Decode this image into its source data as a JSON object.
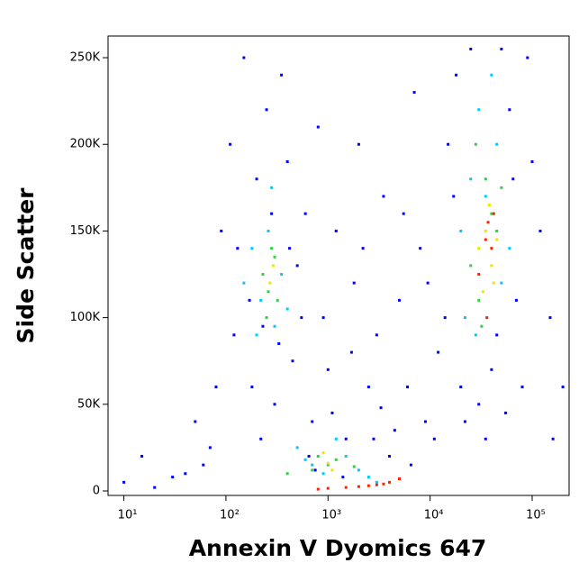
{
  "chart_data": {
    "type": "scatter",
    "x_label": "Annexin V Dyomics 647",
    "y_label": "Side Scatter",
    "xscale": "log",
    "xlim": [
      7,
      230000
    ],
    "ylim": [
      -2600,
      262500
    ],
    "xticks": [
      {
        "value": 10,
        "label": "10¹"
      },
      {
        "value": 100,
        "label": "10²"
      },
      {
        "value": 1000,
        "label": "10³"
      },
      {
        "value": 10000,
        "label": "10⁴"
      },
      {
        "value": 100000,
        "label": "10⁵"
      }
    ],
    "yticks": [
      0,
      {
        "value": 50000,
        "label": "50K"
      },
      {
        "value": 100000,
        "label": "100K"
      },
      {
        "value": 150000,
        "label": "150K"
      },
      {
        "value": 200000,
        "label": "200K"
      },
      {
        "value": 250000,
        "label": "250K"
      }
    ],
    "series": [
      {
        "color": "#0000ff",
        "x": [
          15,
          30,
          50,
          60,
          80,
          90,
          110,
          120,
          150,
          180,
          200,
          220,
          250,
          300,
          350,
          400,
          450,
          500,
          600,
          700,
          800,
          900,
          1000,
          1200,
          1500,
          1800,
          2000,
          2500,
          3000,
          3500,
          4000,
          5000,
          6000,
          7000,
          8000,
          9000,
          12000,
          15000,
          18000,
          20000,
          25000,
          30000,
          40000,
          50000,
          60000,
          70000,
          80000,
          100000,
          120000,
          150000,
          200000,
          10,
          20,
          40,
          70,
          130,
          170,
          230,
          280,
          330,
          420,
          550,
          650,
          750,
          1100,
          1400,
          1700,
          2200,
          2800,
          3300,
          4500,
          5500,
          6500,
          9500,
          11000,
          14000,
          17000,
          22000,
          35000,
          45000,
          55000,
          65000,
          90000,
          160000
        ],
        "y": [
          20000,
          8000,
          40000,
          15000,
          60000,
          150000,
          200000,
          90000,
          250000,
          60000,
          180000,
          30000,
          220000,
          50000,
          240000,
          190000,
          75000,
          130000,
          160000,
          40000,
          210000,
          100000,
          70000,
          150000,
          30000,
          120000,
          200000,
          60000,
          90000,
          170000,
          20000,
          110000,
          60000,
          230000,
          140000,
          40000,
          80000,
          200000,
          240000,
          60000,
          255000,
          50000,
          70000,
          255000,
          220000,
          110000,
          60000,
          190000,
          150000,
          100000,
          60000,
          5000,
          2000,
          10000,
          25000,
          140000,
          110000,
          95000,
          160000,
          85000,
          140000,
          100000,
          20000,
          12000,
          45000,
          8000,
          80000,
          140000,
          30000,
          48000,
          35000,
          160000,
          15000,
          120000,
          30000,
          100000,
          170000,
          40000,
          30000,
          90000,
          45000,
          180000,
          250000,
          30000
        ]
      },
      {
        "color": "#00c8ff",
        "x": [
          180,
          220,
          260,
          300,
          350,
          400,
          200,
          280,
          500,
          700,
          900,
          1500,
          2000,
          2500,
          22000,
          25000,
          30000,
          28000,
          45000,
          50000,
          40000,
          20000,
          35000,
          60000,
          3000,
          1200,
          600,
          150
        ],
        "y": [
          140000,
          110000,
          150000,
          95000,
          125000,
          105000,
          90000,
          175000,
          25000,
          15000,
          10000,
          20000,
          12000,
          8000,
          100000,
          180000,
          220000,
          90000,
          200000,
          120000,
          240000,
          150000,
          170000,
          140000,
          5000,
          30000,
          18000,
          120000
        ]
      },
      {
        "color": "#30d040",
        "x": [
          230,
          260,
          300,
          250,
          320,
          280,
          800,
          1000,
          1200,
          700,
          25000,
          30000,
          35000,
          40000,
          45000,
          28000,
          50000,
          32000,
          1800,
          400
        ],
        "y": [
          125000,
          115000,
          135000,
          100000,
          110000,
          140000,
          20000,
          15000,
          18000,
          12000,
          130000,
          110000,
          180000,
          160000,
          150000,
          200000,
          175000,
          95000,
          14000,
          10000
        ]
      },
      {
        "color": "#e8e800",
        "x": [
          270,
          290,
          1000,
          900,
          1100,
          30000,
          35000,
          40000,
          38000,
          42000,
          33000,
          45000
        ],
        "y": [
          120000,
          130000,
          16000,
          22000,
          12000,
          140000,
          150000,
          130000,
          165000,
          120000,
          115000,
          145000
        ]
      },
      {
        "color": "#ff2000",
        "x": [
          35000,
          40000,
          37000,
          30000,
          42000,
          36000,
          1500,
          2000,
          2500,
          3000,
          1000,
          3500,
          4000,
          5000,
          800
        ],
        "y": [
          145000,
          140000,
          155000,
          125000,
          160000,
          100000,
          2000,
          2500,
          3000,
          3500,
          1500,
          4000,
          5000,
          7000,
          1000
        ]
      }
    ]
  }
}
